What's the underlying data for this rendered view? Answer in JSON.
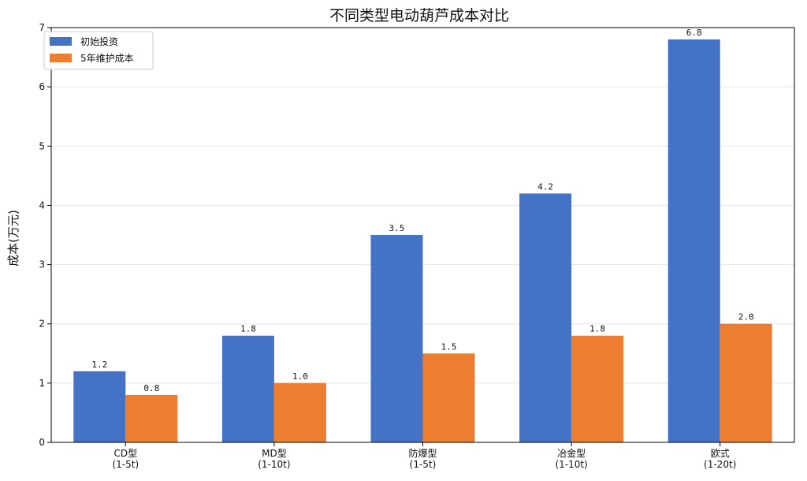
{
  "chart_data": {
    "type": "bar",
    "title": "不同类型电动葫芦成本对比",
    "xlabel": "",
    "ylabel": "成本(万元)",
    "categories": [
      [
        "CD型",
        "(1-5t)"
      ],
      [
        "MD型",
        "(1-10t)"
      ],
      [
        "防爆型",
        "(1-5t)"
      ],
      [
        "冶金型",
        "(1-10t)"
      ],
      [
        "欧式",
        "(1-20t)"
      ]
    ],
    "series": [
      {
        "name": "初始投资",
        "values": [
          1.2,
          1.8,
          3.5,
          4.2,
          6.8
        ],
        "color": "#4472C4",
        "labels": [
          "1.2",
          "1.8",
          "3.5",
          "4.2",
          "6.8"
        ]
      },
      {
        "name": "5年维护成本",
        "values": [
          0.8,
          1.0,
          1.5,
          1.8,
          2.0
        ],
        "color": "#ED7D31",
        "labels": [
          "0.8",
          "1.0",
          "1.5",
          "1.8",
          "2.0"
        ]
      }
    ],
    "ylim": [
      0,
      7
    ],
    "yticks": [
      "0",
      "1",
      "2",
      "3",
      "4",
      "5",
      "6",
      "7"
    ],
    "grid": true,
    "legend_position": "top-left"
  }
}
